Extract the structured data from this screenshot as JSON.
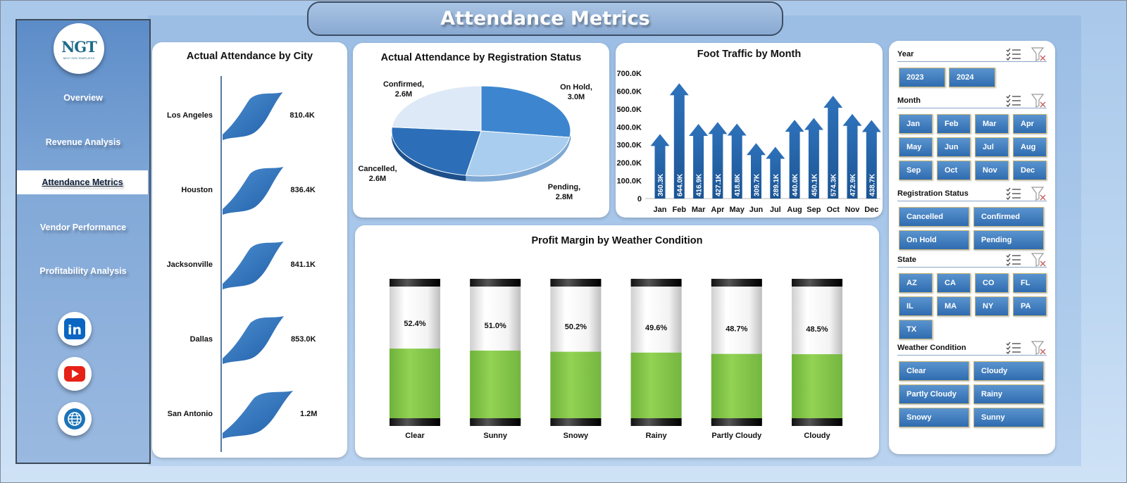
{
  "title": "Attendance Metrics",
  "logo": {
    "mark": "NGT",
    "sub": "NEXT GEN TEMPLATES"
  },
  "nav": [
    {
      "label": "Overview",
      "active": false
    },
    {
      "label": "Revenue Analysis",
      "active": false
    },
    {
      "label": "Attendance Metrics",
      "active": true
    },
    {
      "label": "Vendor Performance",
      "active": false
    },
    {
      "label": "Profitability Analysis",
      "active": false
    }
  ],
  "social": [
    {
      "icon": "linkedin-icon",
      "label": "in",
      "color": "#0a66c2"
    },
    {
      "icon": "youtube-icon",
      "color": "#e62117"
    },
    {
      "icon": "globe-icon",
      "color": "#1a73b8"
    }
  ],
  "colors": {
    "accent": "#2f6cb0",
    "bar_fill": "#8ed14f",
    "title_bg": "#89a9d2"
  },
  "charts": {
    "city": {
      "title": "Actual Attendance by City",
      "chart_data": {
        "type": "bar",
        "categories": [
          "Los Angeles",
          "Houston",
          "Jacksonville",
          "Dallas",
          "San Antonio"
        ],
        "values": [
          810400,
          836400,
          841100,
          853000,
          1200000
        ],
        "labels": [
          "810.4K",
          "836.4K",
          "841.1K",
          "853.0K",
          "1.2M"
        ]
      }
    },
    "status": {
      "title": "Actual Attendance by Registration  Status",
      "chart_data": {
        "type": "pie",
        "categories": [
          "On Hold",
          "Pending",
          "Cancelled",
          "Confirmed"
        ],
        "values": [
          3.0,
          2.8,
          2.6,
          2.6
        ],
        "labels": [
          "On Hold,\n3.0M",
          "Pending,\n2.8M",
          "Cancelled,\n2.6M",
          "Confirmed,\n2.6M"
        ]
      }
    },
    "traffic": {
      "title": "Foot Traffic by Month",
      "chart_data": {
        "type": "bar",
        "categories": [
          "Jan",
          "Feb",
          "Mar",
          "Apr",
          "May",
          "Jun",
          "Jul",
          "Aug",
          "Sep",
          "Oct",
          "Nov",
          "Dec"
        ],
        "values": [
          360.3,
          644.0,
          416.9,
          427.1,
          418.8,
          309.7,
          289.1,
          440.0,
          450.1,
          574.3,
          472.9,
          438.7
        ],
        "labels": [
          "360.3K",
          "644.0K",
          "416.9K",
          "427.1K",
          "418.8K",
          "309.7K",
          "289.1K",
          "440.0K",
          "450.1K",
          "574.3K",
          "472.9K",
          "438.7K"
        ],
        "yticks": [
          "0",
          "100.0K",
          "200.0K",
          "300.0K",
          "400.0K",
          "500.0K",
          "600.0K",
          "700.0K"
        ],
        "ylim": [
          0,
          700
        ]
      }
    },
    "weather": {
      "title": "Profit Margin by Weather Condition",
      "chart_data": {
        "type": "bar",
        "categories": [
          "Clear",
          "Sunny",
          "Snowy",
          "Rainy",
          "Partly Cloudy",
          "Cloudy"
        ],
        "values": [
          52.4,
          51.0,
          50.2,
          49.6,
          48.7,
          48.5
        ],
        "labels": [
          "52.4%",
          "51.0%",
          "50.2%",
          "49.6%",
          "48.7%",
          "48.5%"
        ],
        "ylim": [
          0,
          100
        ]
      }
    }
  },
  "slicers": [
    {
      "label": "Year",
      "items": [
        "2023",
        "2024"
      ]
    },
    {
      "label": "Month",
      "items": [
        "Jan",
        "Feb",
        "Mar",
        "Apr",
        "May",
        "Jun",
        "Jul",
        "Aug",
        "Sep",
        "Oct",
        "Nov",
        "Dec"
      ]
    },
    {
      "label": "Registration Status",
      "items": [
        "Cancelled",
        "Confirmed",
        "On Hold",
        "Pending"
      ]
    },
    {
      "label": "State",
      "items": [
        "AZ",
        "CA",
        "CO",
        "FL",
        "IL",
        "MA",
        "NY",
        "PA",
        "TX"
      ]
    },
    {
      "label": "Weather Condition",
      "items": [
        "Clear",
        "Cloudy",
        "Partly Cloudy",
        "Rainy",
        "Snowy",
        "Sunny"
      ]
    }
  ]
}
